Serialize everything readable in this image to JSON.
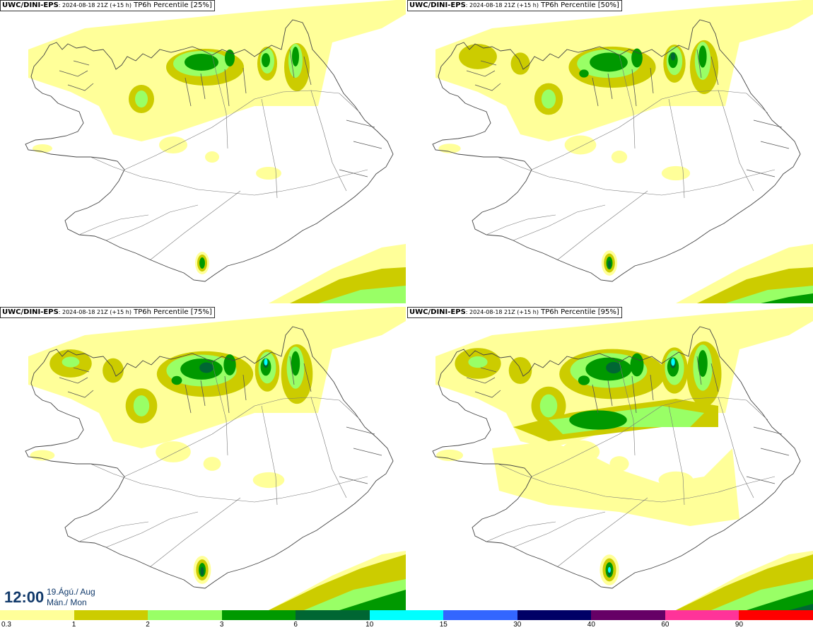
{
  "panels": [
    {
      "model": "UWC/DINI-EPS",
      "run": ": 2024-08-18 21Z (+15 h)",
      "param": " TP6h Percentile [25%]",
      "level": 0
    },
    {
      "model": "UWC/DINI-EPS",
      "run": ": 2024-08-18 21Z (+15 h)",
      "param": " TP6h Percentile [50%]",
      "level": 1
    },
    {
      "model": "UWC/DINI-EPS",
      "run": ": 2024-08-18 21Z (+15 h)",
      "param": " TP6h Percentile [75%]",
      "level": 2
    },
    {
      "model": "UWC/DINI-EPS",
      "run": ": 2024-08-18 21Z (+15 h)",
      "param": " TP6h Percentile [95%]",
      "level": 3
    }
  ],
  "time": {
    "hour": "12:00",
    "date_line": "19.Ágú./ Aug",
    "day_line": "Mán./ Mon"
  },
  "legend": {
    "ticks": [
      "0.3",
      "1",
      "2",
      "3",
      "6",
      "10",
      "15",
      "30",
      "40",
      "60",
      "90"
    ],
    "colors": [
      "#ffff99",
      "#cccc00",
      "#99ff66",
      "#009900",
      "#006633",
      "#00ffff",
      "#3366ff",
      "#000066",
      "#660066",
      "#ff3399",
      "#ff0000"
    ]
  },
  "colors": {
    "light": "#ffff99",
    "olive": "#cccc00",
    "lime": "#99ff66",
    "green": "#009900",
    "dark": "#006633",
    "cyan": "#00ffff"
  }
}
